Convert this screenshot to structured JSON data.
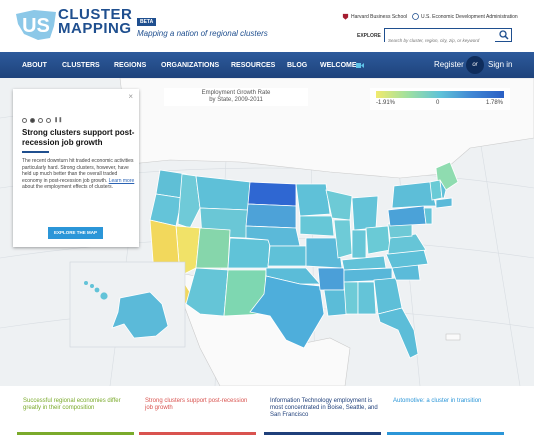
{
  "header": {
    "logo_mark": "US",
    "logo_line1": "CLUSTER",
    "logo_line2": "MAPPING",
    "beta": "BETA",
    "tagline": "Mapping a nation of regional clusters",
    "partner1": "Harvard Business School",
    "partner2": "U.S. Economic Development Administration",
    "explore_label": "EXPLORE",
    "search_placeholder": "Search by cluster, region, city, zip, or keyword"
  },
  "nav": {
    "items": [
      "ABOUT",
      "CLUSTERS",
      "REGIONS",
      "ORGANIZATIONS",
      "RESOURCES",
      "BLOG",
      "WELCOME"
    ],
    "register": "Register",
    "or": "or",
    "signin": "Sign in"
  },
  "map": {
    "legend_title_line1": "Employment Growth Rate",
    "legend_title_line2": "by State, 2009-2011",
    "legend_min": "-1.91%",
    "legend_mid": "0",
    "legend_max": "1.78%",
    "colors": {
      "low": "#f1ea6e",
      "mid": "#5fc3d8",
      "high": "#2a5fc4"
    }
  },
  "panel": {
    "close": "×",
    "title": "Strong clusters support post-recession job growth",
    "body": "The recent downturn hit traded economic activities particularly hard. Strong clusters, however, have held up much better than the overall traded economy in post-recession job growth.",
    "link": "Learn more",
    "body_end": "about the employment effects of clusters.",
    "button": "EXPLORE THE MAP"
  },
  "cards": [
    {
      "text": "Successful regional economies differ greatly in their composition",
      "color": "#7aaa2b"
    },
    {
      "text": "Strong clusters support post-recession job growth",
      "color": "#d9534f"
    },
    {
      "text": "Information Technology employment is most concentrated in Boise, Seattle, and San Francisco",
      "color": "#1f3f7a"
    },
    {
      "text": "Automotive: a cluster in transition",
      "color": "#2b96d8"
    }
  ]
}
